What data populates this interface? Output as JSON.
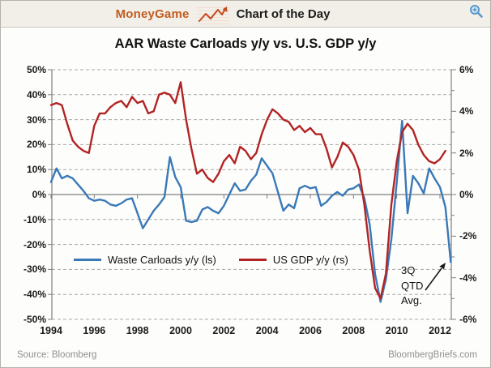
{
  "header": {
    "brand": "MoneyGame",
    "section_title": "Chart of the Day",
    "sparkline_icon": "sparkline-arrow-icon",
    "zoom_icon": "magnifier-zoom-icon"
  },
  "title": "AAR Waste Carloads y/y vs. U.S. GDP y/y",
  "legend": [
    {
      "label": "Waste Carloads y/y (ls)",
      "color": "#3a79b8"
    },
    {
      "label": "US GDP y/y (rs)",
      "color": "#b22424"
    }
  ],
  "annotation": {
    "text": "3Q\nQTD\nAvg.",
    "points_to": "end of blue Waste Carloads line, 2012 3Q QTD average ≈ -27%"
  },
  "footer": {
    "source": "Source: Bloomberg",
    "site": "BloombergBriefs.com"
  },
  "colors": {
    "waste_carloads_blue": "#3a79b8",
    "gdp_red": "#b22424",
    "brand_orange": "#c05c20",
    "zoom_icon_blue": "#5b97c9",
    "header_beige": "#f2efe8",
    "gridline_gray": "#a6a6a6",
    "axis_gray": "#7f7f7f"
  },
  "chart_data": {
    "type": "line",
    "title": "AAR Waste Carloads y/y vs. U.S. GDP y/y",
    "x_unit": "year (quarterly points)",
    "x_start": 1994,
    "x_step": 0.25,
    "x_ticks": {
      "years": [
        1994,
        1996,
        1998,
        2000,
        2002,
        2004,
        2006,
        2008,
        2010,
        2012
      ],
      "labels": [
        "1994",
        "1996",
        "1998",
        "2000",
        "2002",
        "2004",
        "2006",
        "2008",
        "2010",
        "2012"
      ]
    },
    "left_axis": {
      "series": "Waste Carloads y/y",
      "range": [
        -50,
        50
      ],
      "tick_values": [
        50,
        40,
        30,
        20,
        10,
        0,
        -10,
        -20,
        -30,
        -40,
        -50
      ],
      "tick_labels": [
        "50%",
        "40%",
        "30%",
        "20%",
        "10%",
        "0%",
        "-10%",
        "-20%",
        "-30%",
        "-40%",
        "-50%"
      ]
    },
    "right_axis": {
      "series": "US GDP y/y",
      "range": [
        -6,
        6
      ],
      "minor_tick_step": 1,
      "tick_values": [
        6,
        4,
        2,
        0,
        -2,
        -4,
        -6
      ],
      "tick_labels": [
        "6%",
        "4%",
        "2%",
        "0%",
        "-2%",
        "-4%",
        "-6%"
      ]
    },
    "grid": "dashed horizontal gridlines, solid zero line",
    "legend_position": "inside plot, lower left",
    "series": [
      {
        "name": "Waste Carloads y/y (ls)",
        "axis": "left",
        "color": "#3a79b8",
        "values": [
          5,
          10.5,
          6.5,
          7.5,
          6.5,
          4,
          1.5,
          -1.5,
          -2.5,
          -2,
          -2.5,
          -4,
          -4.5,
          -3.5,
          -2,
          -1.5,
          -7.5,
          -13.5,
          -10,
          -6.5,
          -4,
          -1,
          15,
          7,
          3,
          -10.5,
          -11,
          -10.5,
          -6,
          -5,
          -6.5,
          -7.5,
          -4.5,
          0,
          4.5,
          1.5,
          2,
          5.5,
          8,
          14.5,
          11.5,
          8.5,
          1,
          -6.5,
          -4,
          -5.5,
          2.5,
          3.5,
          2.5,
          3,
          -4.5,
          -3,
          -0.5,
          1,
          -0.5,
          2,
          2.5,
          4,
          -1.5,
          -12,
          -32,
          -43,
          -34,
          -18,
          5,
          29.5,
          -7.5,
          7.5,
          4.5,
          0.5,
          10.5,
          6.5,
          3,
          -5,
          -27
        ]
      },
      {
        "name": "US GDP y/y (rs)",
        "axis": "right",
        "color": "#b22424",
        "values": [
          4.3,
          4.4,
          4.3,
          3.4,
          2.6,
          2.3,
          2.1,
          2.0,
          3.3,
          3.9,
          3.9,
          4.2,
          4.4,
          4.5,
          4.2,
          4.7,
          4.4,
          4.5,
          3.9,
          4.0,
          4.8,
          4.9,
          4.8,
          4.4,
          5.4,
          3.6,
          2.2,
          1.0,
          1.2,
          0.8,
          0.6,
          1.0,
          1.6,
          1.9,
          1.5,
          2.3,
          2.1,
          1.7,
          2.0,
          2.9,
          3.6,
          4.1,
          3.9,
          3.6,
          3.5,
          3.1,
          3.3,
          3.0,
          3.2,
          2.9,
          2.9,
          2.2,
          1.3,
          1.8,
          2.5,
          2.3,
          1.9,
          1.2,
          -0.5,
          -2.7,
          -4.5,
          -5.0,
          -3.8,
          -0.5,
          1.6,
          3.0,
          3.4,
          3.1,
          2.4,
          1.9,
          1.6,
          1.5,
          1.7,
          2.1,
          null
        ]
      }
    ]
  }
}
